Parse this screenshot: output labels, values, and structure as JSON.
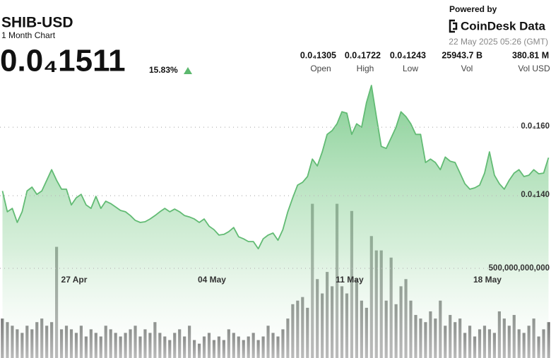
{
  "header": {
    "symbol": "SHIB-USD",
    "subtitle": "1 Month Chart",
    "price": "0.0₄1511",
    "change": "15.83%",
    "powered_by": "Powered by",
    "brand": "CoinDesk Data",
    "timestamp": "22 May 2025 05:26 (GMT)"
  },
  "stats": [
    {
      "value": "0.0₄1305",
      "label": "Open"
    },
    {
      "value": "0.0₄1722",
      "label": "High"
    },
    {
      "value": "0.0₄1243",
      "label": "Low"
    },
    {
      "value": "25943.7 B",
      "label": "Vol"
    },
    {
      "value": "380.81 M",
      "label": "Vol USD"
    }
  ],
  "chart_data": {
    "type": "line",
    "categories": [
      null,
      null,
      null,
      null,
      null,
      null,
      null,
      null,
      null,
      null,
      null,
      null,
      null,
      null,
      "27 Apr",
      null,
      null,
      null,
      null,
      null,
      null,
      null,
      null,
      null,
      null,
      null,
      null,
      null,
      null,
      null,
      null,
      null,
      null,
      null,
      null,
      null,
      null,
      null,
      null,
      null,
      null,
      null,
      "04 May",
      null,
      null,
      null,
      null,
      null,
      null,
      null,
      null,
      null,
      null,
      null,
      null,
      null,
      null,
      null,
      null,
      null,
      null,
      null,
      null,
      null,
      null,
      null,
      null,
      null,
      null,
      null,
      "11 May",
      null,
      null,
      null,
      null,
      null,
      null,
      null,
      null,
      null,
      null,
      null,
      null,
      null,
      null,
      null,
      null,
      null,
      null,
      null,
      null,
      null,
      null,
      null,
      null,
      null,
      null,
      null,
      "18 May",
      null,
      null,
      null,
      null,
      null,
      null,
      null,
      null,
      null,
      null,
      null,
      null,
      null
    ],
    "series": [
      {
        "name": "Price",
        "color": "#62bb74",
        "axis": "y",
        "values": [
          1.414e-05,
          1.353e-05,
          1.363e-05,
          1.322e-05,
          1.353e-05,
          1.414e-05,
          1.425e-05,
          1.404e-05,
          1.414e-05,
          1.445e-05,
          1.476e-05,
          1.445e-05,
          1.419e-05,
          1.419e-05,
          1.373e-05,
          1.394e-05,
          1.404e-05,
          1.373e-05,
          1.363e-05,
          1.398e-05,
          1.363e-05,
          1.384e-05,
          1.377e-05,
          1.367e-05,
          1.357e-05,
          1.353e-05,
          1.342e-05,
          1.328e-05,
          1.322e-05,
          1.324e-05,
          1.332e-05,
          1.342e-05,
          1.353e-05,
          1.363e-05,
          1.353e-05,
          1.361e-05,
          1.353e-05,
          1.342e-05,
          1.338e-05,
          1.332e-05,
          1.322e-05,
          1.332e-05,
          1.311e-05,
          1.301e-05,
          1.285e-05,
          1.287e-05,
          1.295e-05,
          1.307e-05,
          1.28e-05,
          1.274e-05,
          1.266e-05,
          1.266e-05,
          1.245e-05,
          1.274e-05,
          1.285e-05,
          1.291e-05,
          1.27e-05,
          1.301e-05,
          1.353e-05,
          1.394e-05,
          1.431e-05,
          1.439e-05,
          1.456e-05,
          1.507e-05,
          1.487e-05,
          1.528e-05,
          1.579e-05,
          1.59e-05,
          1.61e-05,
          1.645e-05,
          1.641e-05,
          1.579e-05,
          1.61e-05,
          1.6e-05,
          1.672e-05,
          1.722e-05,
          1.631e-05,
          1.544e-05,
          1.538e-05,
          1.569e-05,
          1.6e-05,
          1.645e-05,
          1.631e-05,
          1.61e-05,
          1.579e-05,
          1.579e-05,
          1.497e-05,
          1.507e-05,
          1.497e-05,
          1.476e-05,
          1.513e-05,
          1.501e-05,
          1.497e-05,
          1.466e-05,
          1.435e-05,
          1.419e-05,
          1.423e-05,
          1.431e-05,
          1.466e-05,
          1.528e-05,
          1.46e-05,
          1.435e-05,
          1.419e-05,
          1.445e-05,
          1.466e-05,
          1.476e-05,
          1.456e-05,
          1.46e-05,
          1.476e-05,
          1.464e-05,
          1.466e-05,
          1.511e-05
        ]
      },
      {
        "name": "Volume",
        "color": "#7d7d7d",
        "axis": "y2",
        "values": [
          220000000000.0,
          200000000000.0,
          180000000000.0,
          160000000000.0,
          140000000000.0,
          180000000000.0,
          160000000000.0,
          200000000000.0,
          220000000000.0,
          180000000000.0,
          200000000000.0,
          620000000000.0,
          160000000000.0,
          180000000000.0,
          160000000000.0,
          140000000000.0,
          180000000000.0,
          120000000000.0,
          160000000000.0,
          140000000000.0,
          120000000000.0,
          180000000000.0,
          160000000000.0,
          140000000000.0,
          120000000000.0,
          140000000000.0,
          160000000000.0,
          180000000000.0,
          120000000000.0,
          160000000000.0,
          140000000000.0,
          200000000000.0,
          140000000000.0,
          120000000000.0,
          100000000000.0,
          140000000000.0,
          160000000000.0,
          120000000000.0,
          180000000000.0,
          100000000000.0,
          80000000000.0,
          120000000000.0,
          140000000000.0,
          100000000000.0,
          120000000000.0,
          100000000000.0,
          160000000000.0,
          140000000000.0,
          120000000000.0,
          100000000000.0,
          120000000000.0,
          140000000000.0,
          100000000000.0,
          120000000000.0,
          180000000000.0,
          140000000000.0,
          120000000000.0,
          160000000000.0,
          220000000000.0,
          300000000000.0,
          320000000000.0,
          340000000000.0,
          280000000000.0,
          860000000000.0,
          440000000000.0,
          360000000000.0,
          480000000000.0,
          400000000000.0,
          860000000000.0,
          400000000000.0,
          360000000000.0,
          820000000000.0,
          440000000000.0,
          320000000000.0,
          280000000000.0,
          680000000000.0,
          600000000000.0,
          600000000000.0,
          320000000000.0,
          560000000000.0,
          300000000000.0,
          400000000000.0,
          440000000000.0,
          320000000000.0,
          240000000000.0,
          220000000000.0,
          200000000000.0,
          260000000000.0,
          220000000000.0,
          320000000000.0,
          180000000000.0,
          240000000000.0,
          200000000000.0,
          220000000000.0,
          140000000000.0,
          180000000000.0,
          120000000000.0,
          160000000000.0,
          180000000000.0,
          160000000000.0,
          140000000000.0,
          260000000000.0,
          220000000000.0,
          180000000000.0,
          240000000000.0,
          160000000000.0,
          140000000000.0,
          180000000000.0,
          220000000000.0,
          120000000000.0,
          160000000000.0,
          200000000000.0
        ]
      }
    ],
    "ylim": [
      9.26e-06,
      1.755e-05
    ],
    "yticks": [
      {
        "value": 1.4e-05,
        "label": "0.0₄140"
      },
      {
        "value": 1.6e-05,
        "label": "0.0₄160"
      }
    ],
    "y2lim": [
      0,
      1583000000000
    ],
    "y2ticks": [
      {
        "value": 500000000000,
        "label": "500,000,000,000"
      }
    ],
    "grid": true
  }
}
